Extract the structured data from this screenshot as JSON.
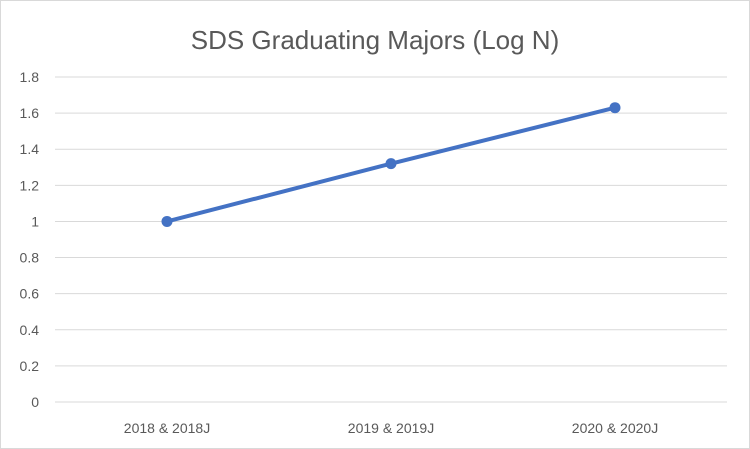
{
  "chart_data": {
    "type": "line",
    "title": "SDS Graduating Majors (Log N)",
    "xlabel": "",
    "ylabel": "",
    "categories": [
      "2018 & 2018J",
      "2019 & 2019J",
      "2020 & 2020J"
    ],
    "series": [
      {
        "values": [
          1.0,
          1.32,
          1.63
        ],
        "color": "#4472c4"
      }
    ],
    "ylim": [
      0,
      1.8
    ],
    "yticks": [
      "0",
      "0.2",
      "0.4",
      "0.6",
      "0.8",
      "1",
      "1.2",
      "1.4",
      "1.6",
      "1.8"
    ],
    "grid": true,
    "legend": "none"
  }
}
